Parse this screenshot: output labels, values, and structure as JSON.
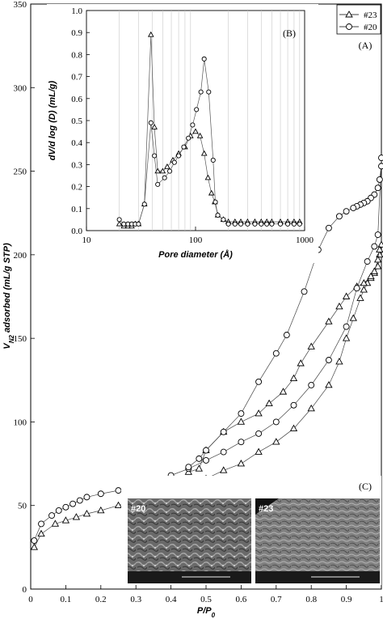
{
  "chart_data": [
    {
      "type": "line",
      "panel_label": "(A)",
      "xlabel": "P/P₀",
      "ylabel": "V_N2 adsorbed (mL/g STP)",
      "xlim": [
        0,
        1
      ],
      "ylim": [
        0,
        350
      ],
      "xticks": [
        "0",
        "0.1",
        "0.2",
        "0.3",
        "0.4",
        "0.5",
        "0.6",
        "0.7",
        "0.8",
        "0.9",
        "1"
      ],
      "yticks": [
        "0",
        "50",
        "100",
        "150",
        "200",
        "250",
        "300",
        "350"
      ],
      "legend": {
        "position": "top-right",
        "entries": [
          "#23",
          "#20"
        ]
      },
      "series": [
        {
          "name": "#23",
          "marker": "triangle",
          "adsorption": [
            [
              0.01,
              25
            ],
            [
              0.03,
              33
            ],
            [
              0.07,
              39
            ],
            [
              0.1,
              41
            ],
            [
              0.13,
              43
            ],
            [
              0.16,
              45
            ],
            [
              0.2,
              47
            ],
            [
              0.25,
              50
            ],
            [
              0.3,
              53
            ],
            [
              0.35,
              56
            ],
            [
              0.4,
              59
            ],
            [
              0.45,
              62
            ],
            [
              0.5,
              66
            ],
            [
              0.55,
              71
            ],
            [
              0.6,
              75
            ],
            [
              0.65,
              82
            ],
            [
              0.7,
              88
            ],
            [
              0.75,
              96
            ],
            [
              0.8,
              108
            ],
            [
              0.85,
              122
            ],
            [
              0.88,
              136
            ],
            [
              0.9,
              150
            ],
            [
              0.92,
              162
            ],
            [
              0.94,
              174
            ],
            [
              0.95,
              179
            ],
            [
              0.96,
              183
            ],
            [
              0.97,
              186
            ],
            [
              0.98,
              189
            ],
            [
              0.99,
              193
            ],
            [
              0.995,
              200
            ],
            [
              1.0,
              206
            ]
          ],
          "desorption": [
            [
              0.995,
              203
            ],
            [
              0.99,
              197
            ],
            [
              0.98,
              190
            ],
            [
              0.97,
              187
            ],
            [
              0.95,
              183
            ],
            [
              0.93,
              181
            ],
            [
              0.9,
              175
            ],
            [
              0.88,
              169
            ],
            [
              0.85,
              160
            ],
            [
              0.8,
              145
            ],
            [
              0.77,
              135
            ],
            [
              0.75,
              126
            ],
            [
              0.72,
              118
            ],
            [
              0.68,
              111
            ],
            [
              0.65,
              105
            ],
            [
              0.6,
              100
            ],
            [
              0.55,
              94
            ],
            [
              0.5,
              83
            ],
            [
              0.48,
              72
            ],
            [
              0.45,
              70
            ]
          ]
        },
        {
          "name": "#20",
          "marker": "circle",
          "adsorption": [
            [
              0.01,
              29
            ],
            [
              0.03,
              39
            ],
            [
              0.06,
              44
            ],
            [
              0.08,
              47
            ],
            [
              0.1,
              49
            ],
            [
              0.12,
              51
            ],
            [
              0.14,
              53
            ],
            [
              0.16,
              55
            ],
            [
              0.2,
              57
            ],
            [
              0.25,
              59
            ],
            [
              0.3,
              62
            ],
            [
              0.35,
              65
            ],
            [
              0.4,
              68
            ],
            [
              0.45,
              72
            ],
            [
              0.5,
              77
            ],
            [
              0.55,
              82
            ],
            [
              0.6,
              88
            ],
            [
              0.65,
              93
            ],
            [
              0.7,
              100
            ],
            [
              0.75,
              110
            ],
            [
              0.8,
              122
            ],
            [
              0.85,
              137
            ],
            [
              0.9,
              157
            ],
            [
              0.93,
              180
            ],
            [
              0.96,
              196
            ],
            [
              0.98,
              205
            ],
            [
              0.99,
              212
            ],
            [
              1.0,
              258
            ]
          ],
          "desorption": [
            [
              1.0,
              253
            ],
            [
              0.995,
              245
            ],
            [
              0.99,
              240
            ],
            [
              0.98,
              236
            ],
            [
              0.97,
              234
            ],
            [
              0.96,
              232
            ],
            [
              0.95,
              231
            ],
            [
              0.94,
              230
            ],
            [
              0.93,
              229
            ],
            [
              0.92,
              228
            ],
            [
              0.9,
              226
            ],
            [
              0.88,
              223
            ],
            [
              0.85,
              216
            ],
            [
              0.82,
              203
            ],
            [
              0.78,
              178
            ],
            [
              0.73,
              152
            ],
            [
              0.7,
              141
            ],
            [
              0.65,
              124
            ],
            [
              0.6,
              105
            ],
            [
              0.55,
              94
            ],
            [
              0.5,
              83
            ],
            [
              0.48,
              78
            ],
            [
              0.45,
              73
            ]
          ]
        }
      ]
    },
    {
      "type": "line",
      "panel_label": "(B)",
      "xlabel": "Pore diameter (Å)",
      "ylabel": "dV/d log (D) (mL/g)",
      "xscale": "log",
      "xlim": [
        10,
        1000
      ],
      "ylim": [
        0,
        1
      ],
      "xticks": [
        "10",
        "100",
        "1000"
      ],
      "yticks": [
        "0.0",
        "0.1",
        "0.2",
        "0.3",
        "0.4",
        "0.5",
        "0.6",
        "0.7",
        "0.8",
        "0.9",
        "1.0"
      ],
      "grid": "vertical",
      "series": [
        {
          "name": "#23",
          "marker": "triangle",
          "points": [
            [
              20,
              0.03
            ],
            [
              22,
              0.02
            ],
            [
              24,
              0.02
            ],
            [
              26,
              0.02
            ],
            [
              28,
              0.03
            ],
            [
              30,
              0.03
            ],
            [
              34,
              0.12
            ],
            [
              39,
              0.89
            ],
            [
              42,
              0.47
            ],
            [
              45,
              0.27
            ],
            [
              50,
              0.27
            ],
            [
              55,
              0.29
            ],
            [
              62,
              0.32
            ],
            [
              70,
              0.35
            ],
            [
              80,
              0.38
            ],
            [
              90,
              0.43
            ],
            [
              100,
              0.45
            ],
            [
              110,
              0.43
            ],
            [
              120,
              0.35
            ],
            [
              130,
              0.24
            ],
            [
              140,
              0.17
            ],
            [
              150,
              0.13
            ],
            [
              160,
              0.07
            ],
            [
              180,
              0.05
            ],
            [
              200,
              0.04
            ],
            [
              230,
              0.04
            ],
            [
              260,
              0.04
            ],
            [
              300,
              0.04
            ],
            [
              350,
              0.04
            ],
            [
              400,
              0.04
            ],
            [
              450,
              0.04
            ],
            [
              500,
              0.04
            ],
            [
              600,
              0.04
            ],
            [
              700,
              0.04
            ],
            [
              800,
              0.04
            ],
            [
              900,
              0.04
            ]
          ]
        },
        {
          "name": "#20",
          "marker": "circle",
          "points": [
            [
              20,
              0.05
            ],
            [
              22,
              0.03
            ],
            [
              24,
              0.03
            ],
            [
              26,
              0.03
            ],
            [
              28,
              0.03
            ],
            [
              30,
              0.03
            ],
            [
              34,
              0.12
            ],
            [
              39,
              0.49
            ],
            [
              42,
              0.34
            ],
            [
              45,
              0.21
            ],
            [
              52,
              0.24
            ],
            [
              58,
              0.27
            ],
            [
              64,
              0.31
            ],
            [
              70,
              0.34
            ],
            [
              78,
              0.38
            ],
            [
              86,
              0.42
            ],
            [
              94,
              0.48
            ],
            [
              102,
              0.55
            ],
            [
              112,
              0.63
            ],
            [
              120,
              0.78
            ],
            [
              132,
              0.63
            ],
            [
              145,
              0.32
            ],
            [
              152,
              0.13
            ],
            [
              160,
              0.07
            ],
            [
              180,
              0.05
            ],
            [
              200,
              0.03
            ],
            [
              230,
              0.03
            ],
            [
              260,
              0.03
            ],
            [
              300,
              0.03
            ],
            [
              350,
              0.03
            ],
            [
              400,
              0.03
            ],
            [
              450,
              0.03
            ],
            [
              500,
              0.03
            ],
            [
              600,
              0.03
            ],
            [
              700,
              0.03
            ],
            [
              800,
              0.03
            ],
            [
              900,
              0.03
            ]
          ]
        }
      ]
    }
  ],
  "inset_c": {
    "panel_label": "(C)",
    "images": [
      {
        "label": "#20"
      },
      {
        "label": "#23"
      }
    ]
  }
}
